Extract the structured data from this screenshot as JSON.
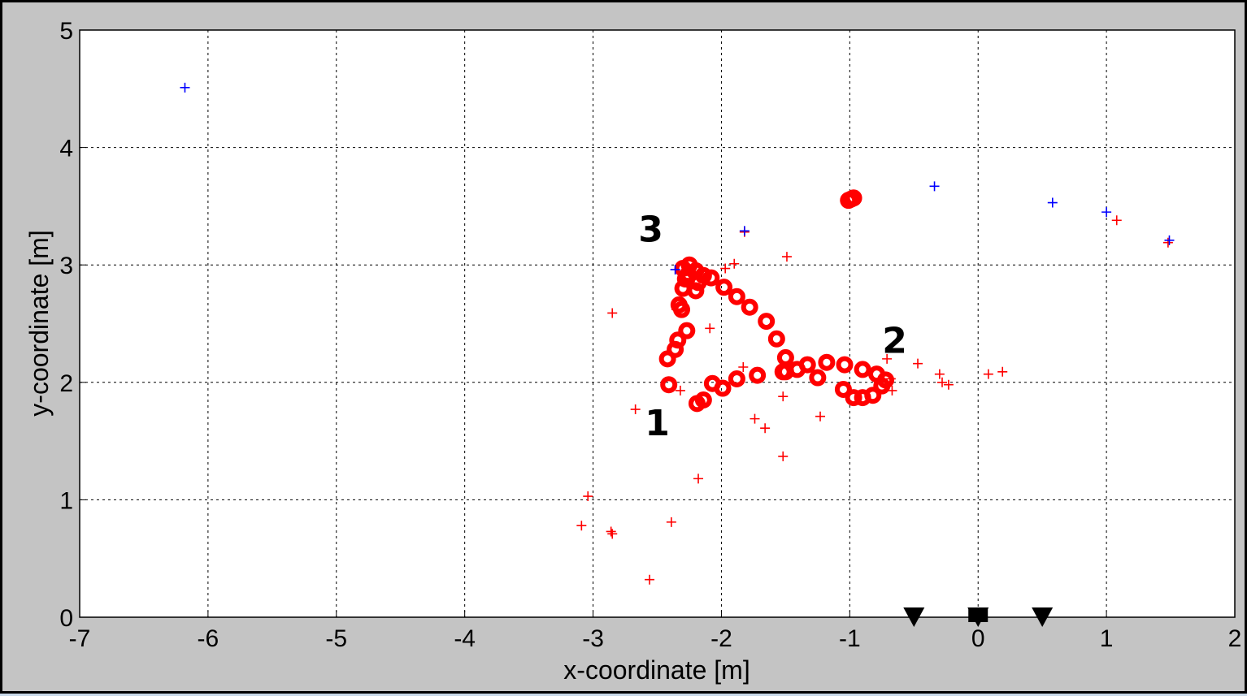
{
  "chart_data": {
    "type": "scatter",
    "title": "",
    "xlabel": "x-coordinate [m]",
    "ylabel": "y-coordinate [m]",
    "xlim": [
      -7,
      2
    ],
    "ylim": [
      0,
      5
    ],
    "xticks": [
      -7,
      -6,
      -5,
      -4,
      -3,
      -2,
      -1,
      0,
      1,
      2
    ],
    "yticks": [
      0,
      1,
      2,
      3,
      4,
      5
    ],
    "grid": true,
    "colors": {
      "trajectory": "#ff0000",
      "red_markers": "#ff0000",
      "blue_markers": "#0000ff",
      "sensors": "#000000"
    },
    "series": [
      {
        "marker": "circle",
        "color": "#ff0000",
        "points": [
          [
            -2.41,
            1.98
          ],
          [
            -2.42,
            2.2
          ],
          [
            -2.36,
            2.28
          ],
          [
            -2.34,
            2.36
          ],
          [
            -2.27,
            2.44
          ],
          [
            -2.31,
            2.62
          ],
          [
            -2.33,
            2.66
          ],
          [
            -2.3,
            2.8
          ],
          [
            -2.28,
            2.88
          ],
          [
            -2.26,
            2.92
          ],
          [
            -2.3,
            2.97
          ],
          [
            -2.25,
            3.0
          ],
          [
            -2.2,
            2.95
          ],
          [
            -2.18,
            2.85
          ],
          [
            -2.2,
            2.78
          ],
          [
            -2.14,
            2.91
          ],
          [
            -2.08,
            2.89
          ],
          [
            -1.98,
            2.81
          ],
          [
            -1.88,
            2.73
          ],
          [
            -1.78,
            2.64
          ],
          [
            -1.65,
            2.52
          ],
          [
            -1.57,
            2.37
          ],
          [
            -1.5,
            2.21
          ],
          [
            -1.5,
            2.09
          ],
          [
            -1.41,
            2.11
          ],
          [
            -1.33,
            2.15
          ],
          [
            -1.18,
            2.17
          ],
          [
            -1.04,
            2.15
          ],
          [
            -0.9,
            2.11
          ],
          [
            -0.79,
            2.07
          ],
          [
            -0.72,
            2.02
          ],
          [
            -0.75,
            1.97
          ],
          [
            -0.82,
            1.89
          ],
          [
            -0.9,
            1.87
          ],
          [
            -0.97,
            1.87
          ],
          [
            -1.05,
            1.94
          ],
          [
            -1.25,
            2.04
          ],
          [
            -1.52,
            2.09
          ],
          [
            -1.72,
            2.06
          ],
          [
            -1.88,
            2.03
          ],
          [
            -1.99,
            1.95
          ],
          [
            -2.07,
            1.99
          ],
          [
            -2.14,
            1.85
          ],
          [
            -2.19,
            1.82
          ],
          [
            -1.01,
            3.55
          ],
          [
            -0.97,
            3.57
          ],
          [
            -0.99,
            3.56
          ]
        ]
      },
      {
        "marker": "plus",
        "color": "#ff0000",
        "points": [
          [
            -2.85,
            2.59
          ],
          [
            -2.67,
            1.77
          ],
          [
            -2.56,
            0.32
          ],
          [
            -2.39,
            0.81
          ],
          [
            -2.35,
            2.62
          ],
          [
            -2.32,
            1.93
          ],
          [
            -2.18,
            1.18
          ],
          [
            -2.09,
            2.46
          ],
          [
            -1.97,
            2.97
          ],
          [
            -1.9,
            3.01
          ],
          [
            -1.83,
            2.13
          ],
          [
            -1.74,
            1.69
          ],
          [
            -1.66,
            1.61
          ],
          [
            -1.52,
            1.88
          ],
          [
            -1.49,
            3.07
          ],
          [
            -1.52,
            1.37
          ],
          [
            -1.23,
            1.71
          ],
          [
            -0.71,
            2.2
          ],
          [
            -0.67,
            1.93
          ],
          [
            -0.68,
            2.03
          ],
          [
            -0.47,
            2.16
          ],
          [
            -0.3,
            2.07
          ],
          [
            -0.28,
            2.0
          ],
          [
            -0.23,
            1.98
          ],
          [
            0.08,
            2.07
          ],
          [
            0.19,
            2.09
          ],
          [
            1.08,
            3.38
          ],
          [
            1.48,
            3.19
          ],
          [
            -3.04,
            1.03
          ],
          [
            -3.09,
            0.78
          ],
          [
            -2.86,
            0.73
          ],
          [
            -2.85,
            0.71
          ],
          [
            -1.82,
            3.28
          ]
        ]
      },
      {
        "marker": "plus",
        "color": "#0000ff",
        "points": [
          [
            -6.18,
            4.51
          ],
          [
            -2.36,
            2.96
          ],
          [
            -1.82,
            3.29
          ],
          [
            -0.34,
            3.67
          ],
          [
            0.58,
            3.53
          ],
          [
            1.0,
            3.45
          ],
          [
            1.49,
            3.21
          ]
        ]
      },
      {
        "marker": "triangle-down",
        "color": "#000000",
        "points": [
          [
            -0.5,
            0.0
          ],
          [
            0.0,
            0.0
          ],
          [
            0.5,
            0.0
          ]
        ]
      },
      {
        "marker": "square",
        "color": "#000000",
        "points": [
          [
            0.0,
            0.0
          ]
        ]
      }
    ],
    "annotations": [
      {
        "text": "1",
        "x": -2.5,
        "y": 1.55
      },
      {
        "text": "2",
        "x": -0.65,
        "y": 2.25
      },
      {
        "text": "3",
        "x": -2.55,
        "y": 3.2
      }
    ]
  }
}
